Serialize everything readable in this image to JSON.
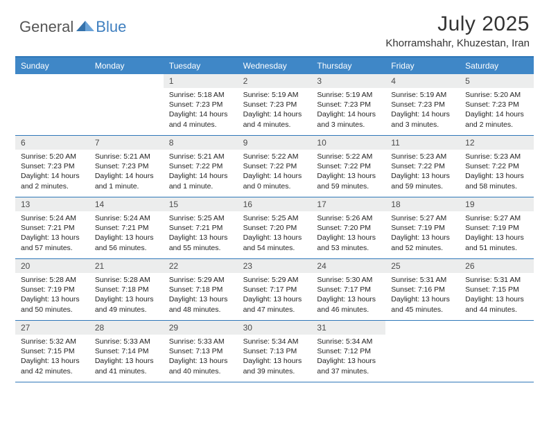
{
  "logo": {
    "general": "General",
    "blue": "Blue"
  },
  "title": "July 2025",
  "location": "Khorramshahr, Khuzestan, Iran",
  "colors": {
    "header_bg": "#3f87c7",
    "border": "#2e77b8",
    "daynum_bg": "#eceded",
    "logo_blue": "#3f7fbf"
  },
  "day_headers": [
    "Sunday",
    "Monday",
    "Tuesday",
    "Wednesday",
    "Thursday",
    "Friday",
    "Saturday"
  ],
  "weeks": [
    [
      {
        "empty": true
      },
      {
        "empty": true
      },
      {
        "num": "1",
        "sunrise": "5:18 AM",
        "sunset": "7:23 PM",
        "daylight": "14 hours and 4 minutes."
      },
      {
        "num": "2",
        "sunrise": "5:19 AM",
        "sunset": "7:23 PM",
        "daylight": "14 hours and 4 minutes."
      },
      {
        "num": "3",
        "sunrise": "5:19 AM",
        "sunset": "7:23 PM",
        "daylight": "14 hours and 3 minutes."
      },
      {
        "num": "4",
        "sunrise": "5:19 AM",
        "sunset": "7:23 PM",
        "daylight": "14 hours and 3 minutes."
      },
      {
        "num": "5",
        "sunrise": "5:20 AM",
        "sunset": "7:23 PM",
        "daylight": "14 hours and 2 minutes."
      }
    ],
    [
      {
        "num": "6",
        "sunrise": "5:20 AM",
        "sunset": "7:23 PM",
        "daylight": "14 hours and 2 minutes."
      },
      {
        "num": "7",
        "sunrise": "5:21 AM",
        "sunset": "7:23 PM",
        "daylight": "14 hours and 1 minute."
      },
      {
        "num": "8",
        "sunrise": "5:21 AM",
        "sunset": "7:22 PM",
        "daylight": "14 hours and 1 minute."
      },
      {
        "num": "9",
        "sunrise": "5:22 AM",
        "sunset": "7:22 PM",
        "daylight": "14 hours and 0 minutes."
      },
      {
        "num": "10",
        "sunrise": "5:22 AM",
        "sunset": "7:22 PM",
        "daylight": "13 hours and 59 minutes."
      },
      {
        "num": "11",
        "sunrise": "5:23 AM",
        "sunset": "7:22 PM",
        "daylight": "13 hours and 59 minutes."
      },
      {
        "num": "12",
        "sunrise": "5:23 AM",
        "sunset": "7:22 PM",
        "daylight": "13 hours and 58 minutes."
      }
    ],
    [
      {
        "num": "13",
        "sunrise": "5:24 AM",
        "sunset": "7:21 PM",
        "daylight": "13 hours and 57 minutes."
      },
      {
        "num": "14",
        "sunrise": "5:24 AM",
        "sunset": "7:21 PM",
        "daylight": "13 hours and 56 minutes."
      },
      {
        "num": "15",
        "sunrise": "5:25 AM",
        "sunset": "7:21 PM",
        "daylight": "13 hours and 55 minutes."
      },
      {
        "num": "16",
        "sunrise": "5:25 AM",
        "sunset": "7:20 PM",
        "daylight": "13 hours and 54 minutes."
      },
      {
        "num": "17",
        "sunrise": "5:26 AM",
        "sunset": "7:20 PM",
        "daylight": "13 hours and 53 minutes."
      },
      {
        "num": "18",
        "sunrise": "5:27 AM",
        "sunset": "7:19 PM",
        "daylight": "13 hours and 52 minutes."
      },
      {
        "num": "19",
        "sunrise": "5:27 AM",
        "sunset": "7:19 PM",
        "daylight": "13 hours and 51 minutes."
      }
    ],
    [
      {
        "num": "20",
        "sunrise": "5:28 AM",
        "sunset": "7:19 PM",
        "daylight": "13 hours and 50 minutes."
      },
      {
        "num": "21",
        "sunrise": "5:28 AM",
        "sunset": "7:18 PM",
        "daylight": "13 hours and 49 minutes."
      },
      {
        "num": "22",
        "sunrise": "5:29 AM",
        "sunset": "7:18 PM",
        "daylight": "13 hours and 48 minutes."
      },
      {
        "num": "23",
        "sunrise": "5:29 AM",
        "sunset": "7:17 PM",
        "daylight": "13 hours and 47 minutes."
      },
      {
        "num": "24",
        "sunrise": "5:30 AM",
        "sunset": "7:17 PM",
        "daylight": "13 hours and 46 minutes."
      },
      {
        "num": "25",
        "sunrise": "5:31 AM",
        "sunset": "7:16 PM",
        "daylight": "13 hours and 45 minutes."
      },
      {
        "num": "26",
        "sunrise": "5:31 AM",
        "sunset": "7:15 PM",
        "daylight": "13 hours and 44 minutes."
      }
    ],
    [
      {
        "num": "27",
        "sunrise": "5:32 AM",
        "sunset": "7:15 PM",
        "daylight": "13 hours and 42 minutes."
      },
      {
        "num": "28",
        "sunrise": "5:33 AM",
        "sunset": "7:14 PM",
        "daylight": "13 hours and 41 minutes."
      },
      {
        "num": "29",
        "sunrise": "5:33 AM",
        "sunset": "7:13 PM",
        "daylight": "13 hours and 40 minutes."
      },
      {
        "num": "30",
        "sunrise": "5:34 AM",
        "sunset": "7:13 PM",
        "daylight": "13 hours and 39 minutes."
      },
      {
        "num": "31",
        "sunrise": "5:34 AM",
        "sunset": "7:12 PM",
        "daylight": "13 hours and 37 minutes."
      },
      {
        "empty": true
      },
      {
        "empty": true
      }
    ]
  ],
  "labels": {
    "sunrise": "Sunrise:",
    "sunset": "Sunset:",
    "daylight": "Daylight:"
  }
}
